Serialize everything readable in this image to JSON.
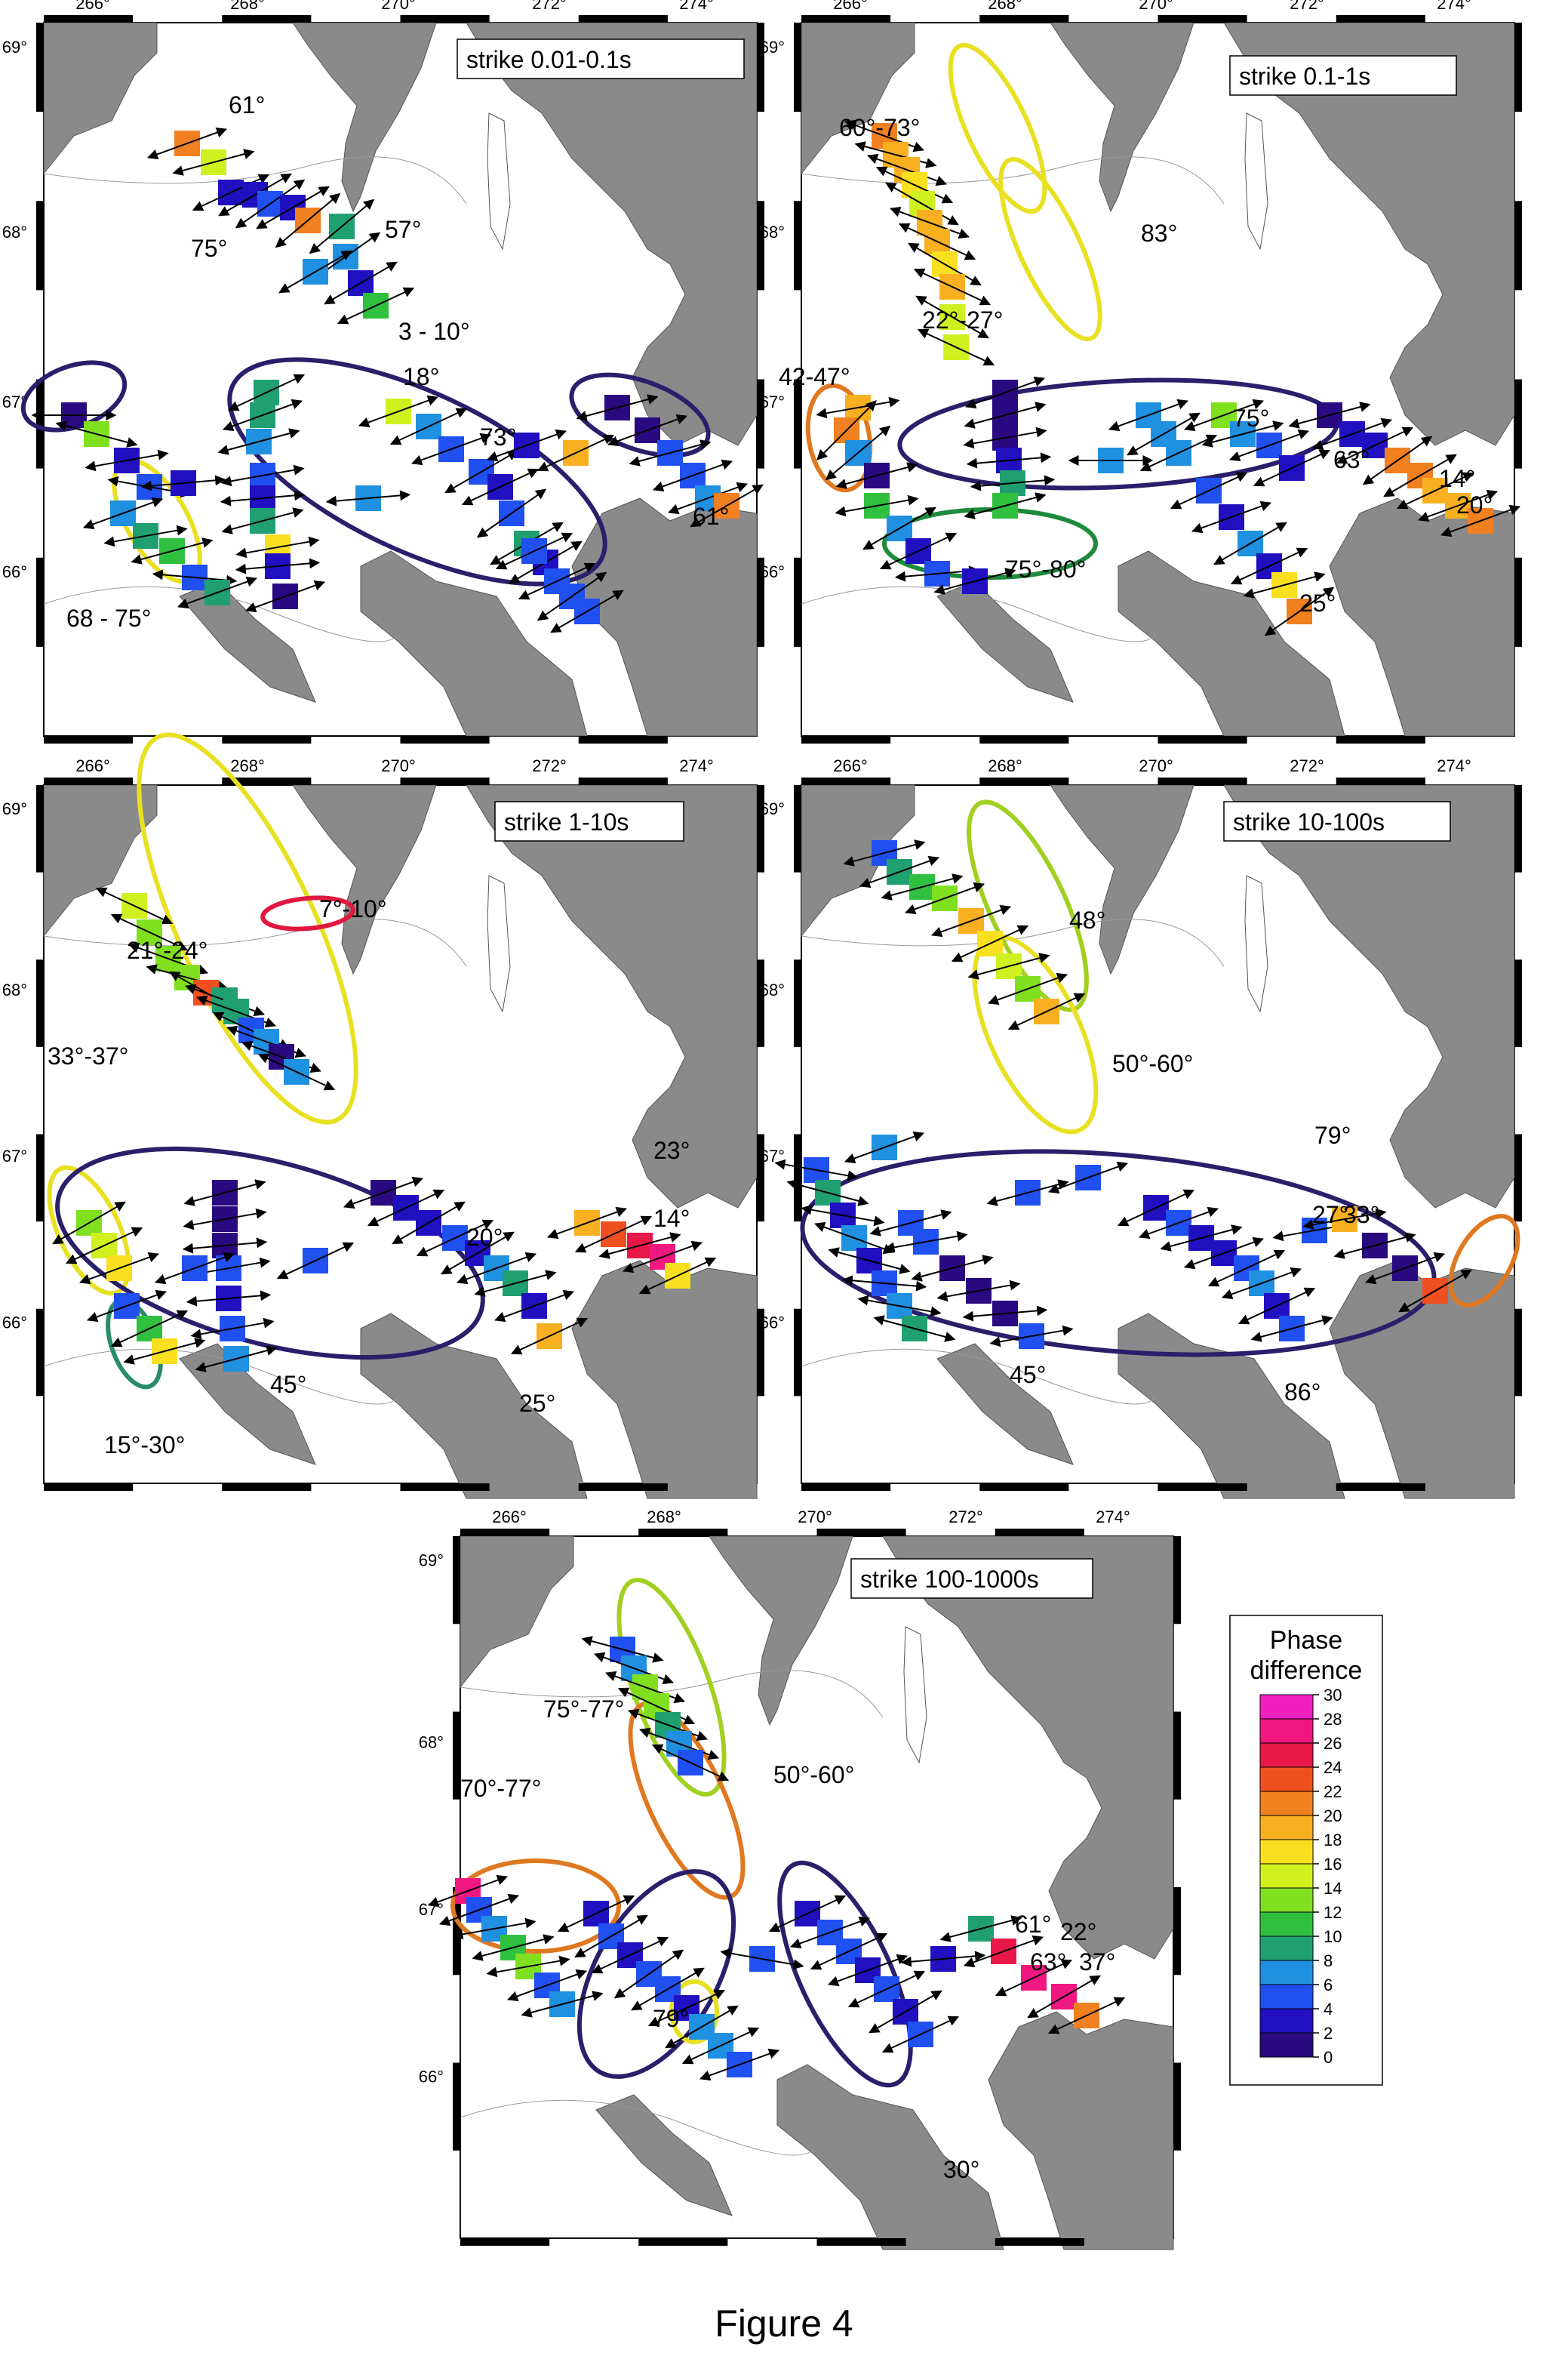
{
  "figure_caption": "Figure 4",
  "axes": {
    "lon_ticks": [
      "266°",
      "268°",
      "270°",
      "272°",
      "274°"
    ],
    "lat_ticks": [
      "69°",
      "68°",
      "67°",
      "66°"
    ]
  },
  "colors": {
    "land": "#8a8a8a",
    "water": "#ffffff",
    "frame": "#000000",
    "ellipse_navy": "#2a1f6b",
    "ellipse_yellow": "#e8e020",
    "ellipse_orange": "#e07820",
    "ellipse_green": "#1e8a3c",
    "ellipse_teal": "#2a8a6a",
    "ellipse_red": "#e01840",
    "ellipse_lime": "#a0d020"
  },
  "legend": {
    "title_line1": "Phase",
    "title_line2": "difference",
    "ticks": [
      "30",
      "28",
      "26",
      "24",
      "22",
      "20",
      "18",
      "16",
      "14",
      "12",
      "10",
      "8",
      "6",
      "4",
      "2",
      "0"
    ],
    "colors": [
      "#f020c0",
      "#f01880",
      "#e81848",
      "#f05020",
      "#f08020",
      "#f8b020",
      "#f8e020",
      "#d0f020",
      "#80e020",
      "#30c040",
      "#20a070",
      "#2090e0",
      "#2050f0",
      "#2010c0",
      "#2a0a80"
    ]
  },
  "panels": [
    {
      "title": "strike 0.01-0.1s",
      "labels": [
        "61°",
        "57°",
        "75°",
        "3 - 10°",
        "18°",
        "73°",
        "61°",
        "68 - 75°"
      ]
    },
    {
      "title": "strike 0.1-1s",
      "labels": [
        "60°-73°",
        "83°",
        "22°-27°",
        "42-47°",
        "75°",
        "63°",
        "14°",
        "20°",
        "75°-80°",
        "25°"
      ]
    },
    {
      "title": "strike 1-10s",
      "labels": [
        "7°-10°",
        "21°-24°",
        "33°-37°",
        "23°",
        "20°",
        "14°",
        "45°",
        "25°",
        "15°-30°"
      ]
    },
    {
      "title": "strike 10-100s",
      "labels": [
        "48°",
        "50°-60°",
        "79°",
        "27°",
        "33°",
        "45°",
        "86°"
      ]
    },
    {
      "title": "strike 100-1000s",
      "labels": [
        "75°-77°",
        "50°-60°",
        "70°-77°",
        "61°",
        "22°",
        "63°",
        "37°",
        "79°",
        "30°"
      ]
    }
  ]
}
